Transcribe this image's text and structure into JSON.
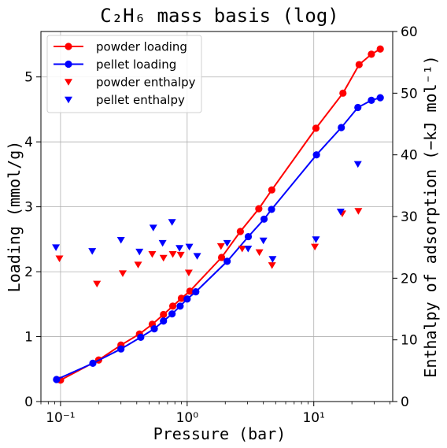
{
  "chart_data": {
    "type": "scatter",
    "title": "C₂H₆ mass basis (log)",
    "xlabel": "Pressure (bar)",
    "ylabel": "Loading (mmol/g)",
    "y2label": "Enthalpy of adsorption (−kJ mol⁻¹)",
    "xscale": "log",
    "xlim": [
      0.07,
      42
    ],
    "ylim": [
      0,
      5.7
    ],
    "y2lim": [
      0,
      60
    ],
    "x_ticks": [
      {
        "value": 0.1,
        "label": "10⁻¹"
      },
      {
        "value": 1,
        "label": "10⁰"
      },
      {
        "value": 10,
        "label": "10¹"
      }
    ],
    "y_ticks": [
      0,
      1,
      2,
      3,
      4,
      5
    ],
    "y2_ticks": [
      0,
      10,
      20,
      30,
      40,
      50,
      60
    ],
    "grid": true,
    "legend_position": "top-left",
    "series": [
      {
        "name": "powder loading",
        "kind": "line-marker",
        "axis": "left",
        "color": "#ff0000",
        "points": [
          [
            0.1,
            0.33
          ],
          [
            0.2,
            0.64
          ],
          [
            0.3,
            0.87
          ],
          [
            0.42,
            1.04
          ],
          [
            0.53,
            1.19
          ],
          [
            0.65,
            1.34
          ],
          [
            0.77,
            1.47
          ],
          [
            0.9,
            1.59
          ],
          [
            1.05,
            1.7
          ],
          [
            1.87,
            2.22
          ],
          [
            2.63,
            2.62
          ],
          [
            3.68,
            2.97
          ],
          [
            4.66,
            3.26
          ],
          [
            10.4,
            4.21
          ],
          [
            17.0,
            4.75
          ],
          [
            22.8,
            5.19
          ],
          [
            28.5,
            5.35
          ],
          [
            33.5,
            5.43
          ]
        ]
      },
      {
        "name": "pellet loading",
        "kind": "line-marker",
        "axis": "left",
        "color": "#0000ff",
        "points": [
          [
            0.093,
            0.34
          ],
          [
            0.18,
            0.59
          ],
          [
            0.3,
            0.81
          ],
          [
            0.43,
            0.99
          ],
          [
            0.55,
            1.12
          ],
          [
            0.65,
            1.24
          ],
          [
            0.76,
            1.35
          ],
          [
            0.88,
            1.47
          ],
          [
            1.0,
            1.58
          ],
          [
            1.17,
            1.69
          ],
          [
            2.07,
            2.16
          ],
          [
            3.04,
            2.54
          ],
          [
            4.05,
            2.81
          ],
          [
            4.64,
            2.96
          ],
          [
            10.5,
            3.8
          ],
          [
            16.5,
            4.22
          ],
          [
            22.3,
            4.53
          ],
          [
            28.5,
            4.64
          ],
          [
            33.5,
            4.68
          ]
        ]
      },
      {
        "name": "powder enthalpy",
        "kind": "marker",
        "marker": "triangle-down",
        "axis": "right",
        "color": "#ff0000",
        "points": [
          [
            0.098,
            23.2
          ],
          [
            0.194,
            19.1
          ],
          [
            0.31,
            20.8
          ],
          [
            0.41,
            22.2
          ],
          [
            0.53,
            23.9
          ],
          [
            0.65,
            23.3
          ],
          [
            0.77,
            23.9
          ],
          [
            0.89,
            23.8
          ],
          [
            1.03,
            20.9
          ],
          [
            1.85,
            25.2
          ],
          [
            2.72,
            24.8
          ],
          [
            3.72,
            24.2
          ],
          [
            4.68,
            22.1
          ],
          [
            10.2,
            25.1
          ],
          [
            16.8,
            30.5
          ],
          [
            22.5,
            30.9
          ]
        ]
      },
      {
        "name": "pellet enthalpy",
        "kind": "marker",
        "marker": "triangle-down",
        "axis": "right",
        "color": "#0000ff",
        "points": [
          [
            0.092,
            25.0
          ],
          [
            0.178,
            24.4
          ],
          [
            0.3,
            26.2
          ],
          [
            0.42,
            24.3
          ],
          [
            0.54,
            28.2
          ],
          [
            0.64,
            25.7
          ],
          [
            0.76,
            29.1
          ],
          [
            0.87,
            24.9
          ],
          [
            1.04,
            25.1
          ],
          [
            1.2,
            23.6
          ],
          [
            2.07,
            25.7
          ],
          [
            3.03,
            24.8
          ],
          [
            4.0,
            26.1
          ],
          [
            4.73,
            23.1
          ],
          [
            10.4,
            26.3
          ],
          [
            16.3,
            30.8
          ],
          [
            22.3,
            38.5
          ]
        ]
      }
    ]
  }
}
